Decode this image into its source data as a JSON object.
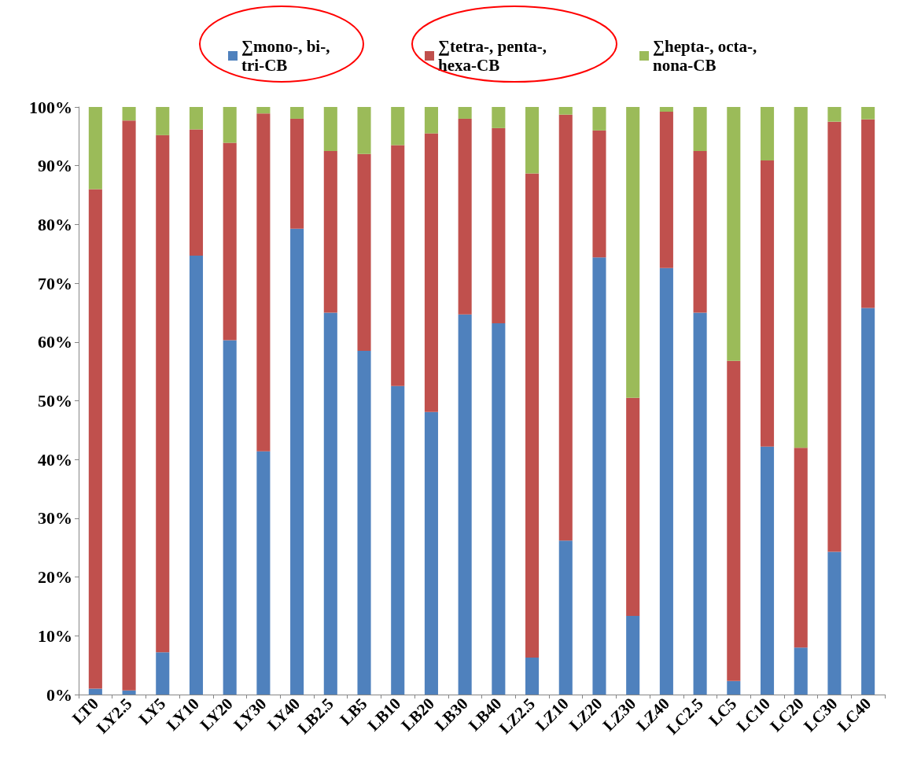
{
  "chart_data": {
    "type": "bar",
    "stacked": true,
    "categories": [
      "LT0",
      "LY2.5",
      "LY5",
      "LY10",
      "LY20",
      "LY30",
      "LY40",
      "LB2.5",
      "LB5",
      "LB10",
      "LB20",
      "LB30",
      "LB40",
      "LZ2.5",
      "LZ10",
      "LZ20",
      "LZ30",
      "LZ40",
      "LC2.5",
      "LC5",
      "LC10",
      "LC20",
      "LC30",
      "LC40"
    ],
    "series": [
      {
        "name": "∑mono-, bi-, tri-CB",
        "color": "#4f81bd",
        "values": [
          1,
          0.7,
          7.2,
          74.7,
          60.3,
          41.4,
          79.3,
          65,
          58.5,
          52.5,
          48.1,
          64.7,
          63.2,
          6.3,
          26.2,
          74.4,
          13.4,
          72.6,
          65,
          2.3,
          42.2,
          8,
          24.3,
          65.8
        ]
      },
      {
        "name": "∑tetra-, penta-, hexa-CB",
        "color": "#c0504d",
        "values": [
          85,
          97,
          88,
          21.5,
          33.6,
          57.5,
          18.7,
          27.5,
          33.5,
          41,
          47.4,
          33.3,
          33.2,
          82.4,
          72.5,
          21.6,
          37.1,
          26.6,
          27.5,
          54.5,
          48.7,
          34,
          73.2,
          32.1
        ]
      },
      {
        "name": "∑hepta-, octa-, nona-CB",
        "color": "#9bbb59",
        "values": [
          14,
          2.3,
          4.8,
          3.8,
          6.1,
          1.1,
          2,
          7.5,
          8,
          6.5,
          4.5,
          2,
          3.6,
          11.3,
          1.3,
          4,
          49.5,
          0.8,
          7.5,
          43.2,
          9.1,
          58,
          2.5,
          2.1
        ]
      }
    ],
    "ylim": [
      0,
      100
    ],
    "yticks": [
      {
        "value": 0,
        "label": "0%"
      },
      {
        "value": 10,
        "label": "10%"
      },
      {
        "value": 20,
        "label": "20%"
      },
      {
        "value": 30,
        "label": "30%"
      },
      {
        "value": 40,
        "label": "40%"
      },
      {
        "value": 50,
        "label": "50%"
      },
      {
        "value": 60,
        "label": "60%"
      },
      {
        "value": 70,
        "label": "70%"
      },
      {
        "value": 80,
        "label": "80%"
      },
      {
        "value": 90,
        "label": "90%"
      },
      {
        "value": 100,
        "label": "100%"
      }
    ],
    "grid": false,
    "legend": "top"
  }
}
